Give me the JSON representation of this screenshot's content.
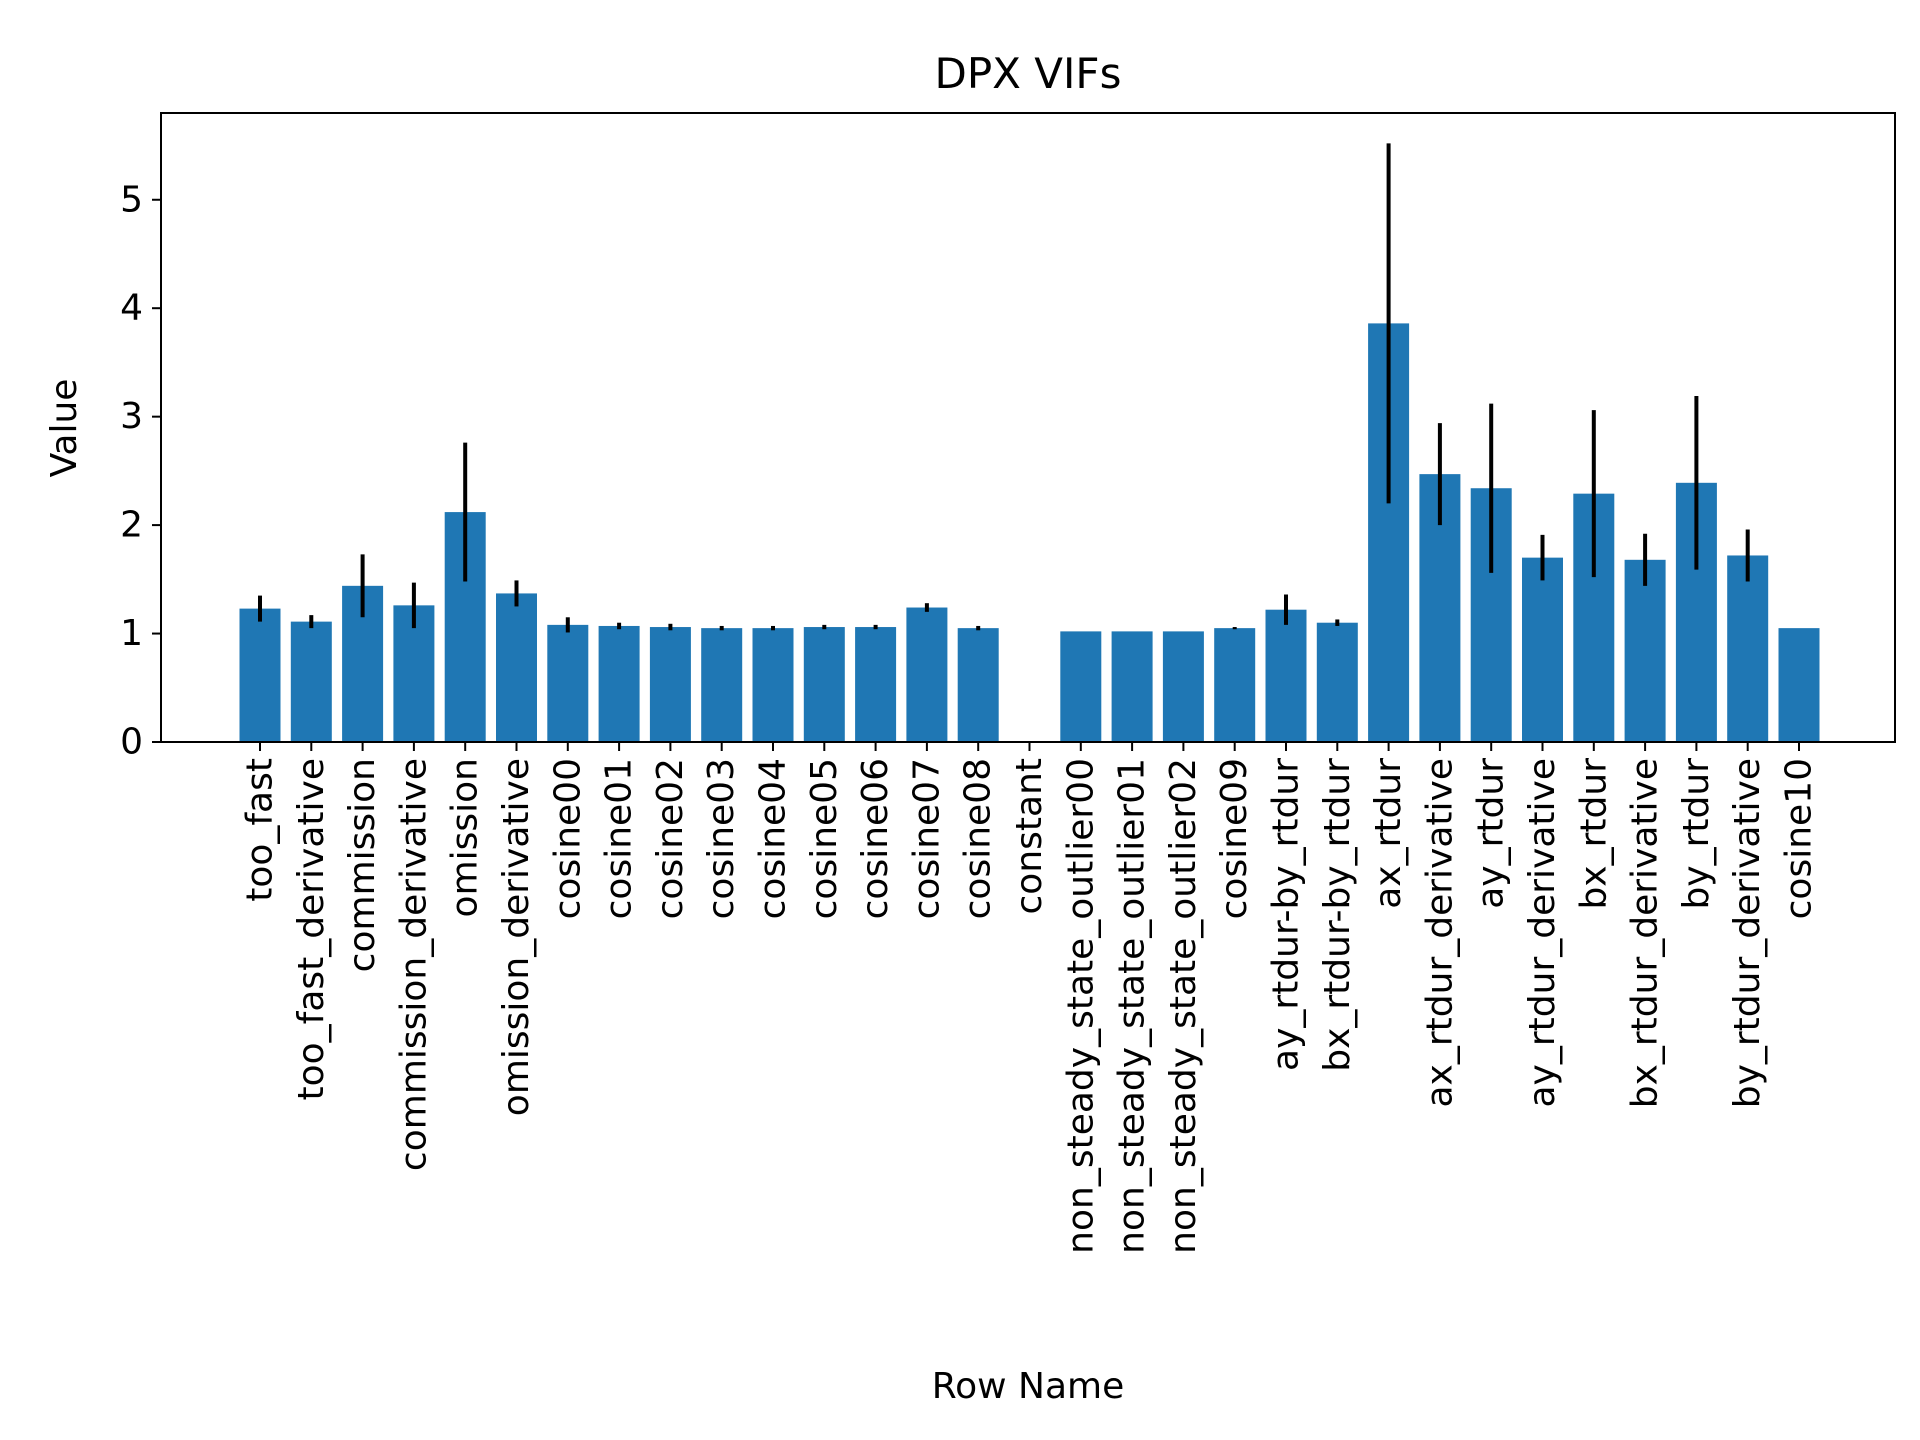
{
  "chart_data": {
    "type": "bar",
    "title": "DPX VIFs",
    "xlabel": "Row Name",
    "ylabel": "Value",
    "ylim": [
      0,
      5.8
    ],
    "yticks": [
      "0",
      "1",
      "2",
      "3",
      "4",
      "5"
    ],
    "grid": false,
    "bar_color": "#1f77b4",
    "error_color": "#000000",
    "categories": [
      "too_fast",
      "too_fast_derivative",
      "commission",
      "commission_derivative",
      "omission",
      "omission_derivative",
      "cosine00",
      "cosine01",
      "cosine02",
      "cosine03",
      "cosine04",
      "cosine05",
      "cosine06",
      "cosine07",
      "cosine08",
      "constant",
      "non_steady_state_outlier00",
      "non_steady_state_outlier01",
      "non_steady_state_outlier02",
      "cosine09",
      "ay_rtdur-by_rtdur",
      "bx_rtdur-by_rtdur",
      "ax_rtdur",
      "ax_rtdur_derivative",
      "ay_rtdur",
      "ay_rtdur_derivative",
      "bx_rtdur",
      "bx_rtdur_derivative",
      "by_rtdur",
      "by_rtdur_derivative",
      "cosine10"
    ],
    "values": [
      1.23,
      1.11,
      1.44,
      1.26,
      2.12,
      1.37,
      1.08,
      1.07,
      1.06,
      1.05,
      1.05,
      1.06,
      1.06,
      1.24,
      1.05,
      0,
      1.02,
      1.02,
      1.02,
      1.05,
      1.22,
      1.1,
      3.86,
      2.47,
      2.34,
      1.7,
      2.29,
      1.68,
      2.39,
      1.72,
      1.05
    ],
    "errors": [
      0.12,
      0.06,
      0.29,
      0.21,
      0.64,
      0.12,
      0.07,
      0.03,
      0.03,
      0.02,
      0.02,
      0.02,
      0.02,
      0.04,
      0.02,
      0,
      0,
      0,
      0,
      0.01,
      0.14,
      0.03,
      1.66,
      0.47,
      0.78,
      0.21,
      0.77,
      0.24,
      0.8,
      0.24,
      0
    ]
  }
}
